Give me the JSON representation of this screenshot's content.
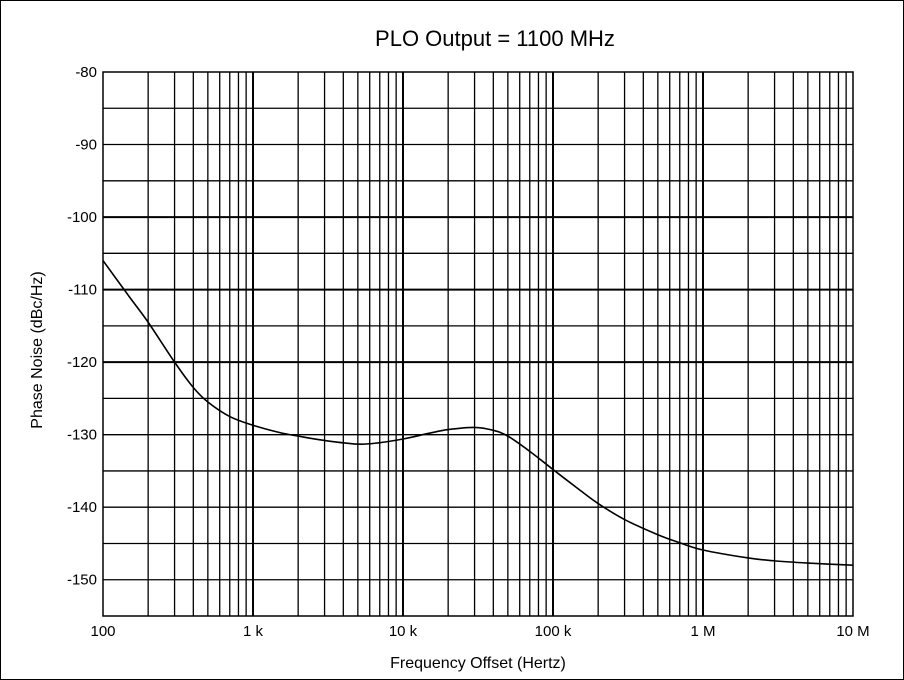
{
  "chart_data": {
    "type": "line",
    "title": "PLO Output = 1100 MHz",
    "xlabel": "Frequency Offset (Hertz)",
    "ylabel": "Phase Noise (dBc/Hz)",
    "x_scale": "log",
    "xlim": [
      100,
      10000000
    ],
    "ylim": [
      -155,
      -80
    ],
    "x_ticks": [
      {
        "value": 100,
        "label": "100"
      },
      {
        "value": 1000,
        "label": "1 k"
      },
      {
        "value": 10000,
        "label": "10 k"
      },
      {
        "value": 100000,
        "label": "100 k"
      },
      {
        "value": 1000000,
        "label": "1 M"
      },
      {
        "value": 10000000,
        "label": "10 M"
      }
    ],
    "y_ticks": [
      {
        "value": -80,
        "label": "-80"
      },
      {
        "value": -90,
        "label": "-90"
      },
      {
        "value": -100,
        "label": "-100"
      },
      {
        "value": -110,
        "label": "-110"
      },
      {
        "value": -120,
        "label": "-120"
      },
      {
        "value": -130,
        "label": "-130"
      },
      {
        "value": -140,
        "label": "-140"
      },
      {
        "value": -150,
        "label": "-150"
      }
    ],
    "grid": true,
    "series": [
      {
        "color": "#000000",
        "x": [
          100,
          150,
          200,
          300,
          400,
          500,
          700,
          1000,
          1500,
          2000,
          3000,
          5000,
          7000,
          10000,
          15000,
          20000,
          30000,
          40000,
          50000,
          70000,
          100000,
          150000,
          200000,
          300000,
          500000,
          700000,
          1000000,
          2000000,
          3000000,
          5000000,
          10000000
        ],
        "y": [
          -106,
          -111,
          -114.5,
          -120,
          -123.5,
          -125.5,
          -127.5,
          -128.7,
          -129.7,
          -130.2,
          -130.8,
          -131.3,
          -131.1,
          -130.6,
          -129.8,
          -129.3,
          -129.0,
          -129.4,
          -130.2,
          -132.3,
          -134.8,
          -137.6,
          -139.5,
          -141.7,
          -143.8,
          -144.9,
          -145.9,
          -147.0,
          -147.4,
          -147.7,
          -148.0
        ]
      }
    ]
  }
}
